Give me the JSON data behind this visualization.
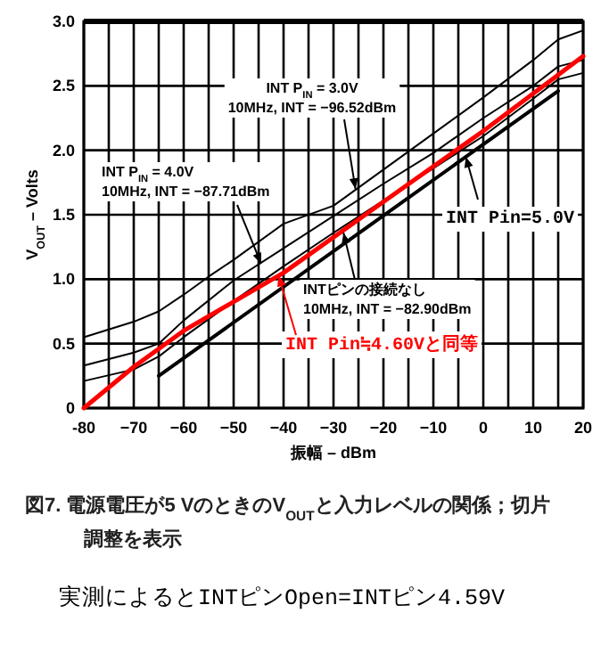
{
  "chart_data": {
    "type": "line",
    "xlabel": "振幅 – dBm",
    "ylabel": "V$_{OUT}$ – Volts",
    "xlim": [
      -80,
      20
    ],
    "ylim": [
      0,
      3
    ],
    "xticks": [
      -80,
      {
        "value": -75,
        "label": null
      },
      {
        "value": -70,
        "label": "−70"
      },
      {
        "value": -65,
        "label": null
      },
      {
        "value": -60,
        "label": "−60"
      },
      {
        "value": -55,
        "label": null
      },
      {
        "value": -50,
        "label": "−50"
      },
      {
        "value": -45,
        "label": null
      },
      {
        "value": -40,
        "label": "−40"
      },
      {
        "value": -35,
        "label": null
      },
      {
        "value": -30,
        "label": "−30"
      },
      {
        "value": -25,
        "label": null
      },
      {
        "value": -20,
        "label": "−20"
      },
      {
        "value": -15,
        "label": null
      },
      {
        "value": -10,
        "label": "−10"
      },
      {
        "value": -5,
        "label": null
      },
      0,
      {
        "value": 5,
        "label": null
      },
      10,
      {
        "value": 15,
        "label": null
      },
      20
    ],
    "yticks": [
      0,
      0.5,
      {
        "value": 1,
        "label": "1.0"
      },
      1.5,
      {
        "value": 2,
        "label": "2.0"
      },
      2.5,
      {
        "value": 3,
        "label": "3.0"
      }
    ],
    "grid": true,
    "line_style": "solid",
    "series": [
      {
        "color": "#000000",
        "x": [
          -80,
          -70,
          -65,
          -60,
          -55,
          -50,
          -40,
          -30,
          -20,
          -10,
          0,
          10,
          15,
          20
        ],
        "values": [
          0.55,
          0.67,
          0.75,
          0.88,
          1.02,
          1.15,
          1.43,
          1.57,
          1.85,
          2.13,
          2.41,
          2.7,
          2.86,
          2.93
        ]
      },
      {
        "color": "#000000",
        "x": [
          -80,
          -70,
          -65,
          -60,
          -50,
          -40,
          -30,
          -20,
          -10,
          0,
          10,
          15,
          20
        ],
        "values": [
          0.33,
          0.43,
          0.5,
          0.68,
          0.99,
          1.24,
          1.49,
          1.74,
          1.98,
          2.25,
          2.5,
          2.65,
          2.7
        ]
      },
      {
        "color": "#000000",
        "x": [
          -80,
          -70,
          -65,
          -60,
          -50,
          -40,
          -30,
          -20,
          -10,
          0,
          10,
          15,
          20
        ],
        "values": [
          0.21,
          0.3,
          0.4,
          0.55,
          0.83,
          1.1,
          1.36,
          1.61,
          1.86,
          2.11,
          2.4,
          2.55,
          2.6
        ]
      },
      {
        "color": "#000000",
        "x": [
          -65,
          15
        ],
        "values": [
          0.25,
          2.46
        ]
      },
      {
        "name": "INT Pin≒4.60Vと同等",
        "color": "#ff0000",
        "x": [
          -80,
          -70,
          -60,
          -40,
          -20,
          0,
          20
        ],
        "values": [
          0,
          0.32,
          0.6,
          1.05,
          1.6,
          2.15,
          2.73
        ]
      }
    ],
    "annotations": [
      {
        "text": "INT P$_{IN}$ = 3.0V\n10MHz, INT = −96.52dBm",
        "x": -25.6,
        "y": 1.7
      },
      {
        "text": "INT P$_{IN}$ = 4.0V\n10MHz, INT = −87.71dBm",
        "x": -44.5,
        "y": 1.12
      },
      {
        "text": "INTピンの接続なし\n10MHz, INT = −82.90dBm",
        "x": -28,
        "y": 1.36
      },
      {
        "text": "INT Pin=5.0V",
        "x": -3.5,
        "y": 1.95
      },
      "図7.  電源電圧が5 VのときのV$_{OUT}$と入力レベルの関係；切片調整を表示",
      "実測によるとINTピンOpen=INTピン4.59V"
    ]
  }
}
